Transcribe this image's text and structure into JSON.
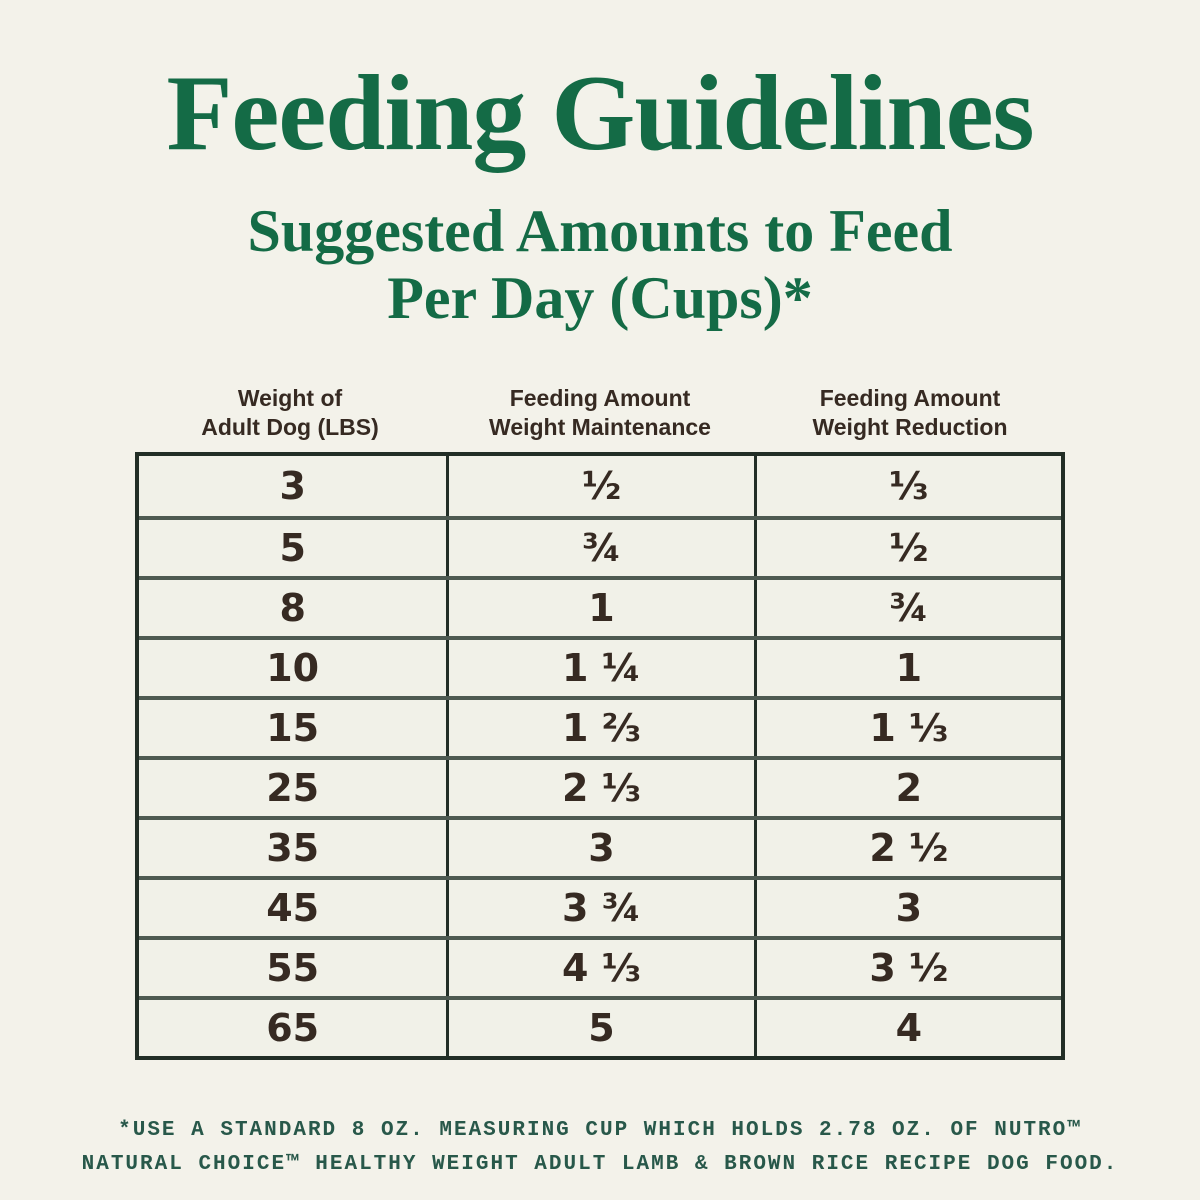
{
  "page": {
    "title": "Feeding Guidelines",
    "subtitle_line1": "Suggested Amounts to Feed",
    "subtitle_line2": "Per Day (Cups)*"
  },
  "table": {
    "headers": [
      {
        "line1": "Weight of",
        "line2": "Adult Dog (LBS)"
      },
      {
        "line1": "Feeding Amount",
        "line2": "Weight Maintenance"
      },
      {
        "line1": "Feeding Amount",
        "line2": "Weight Reduction"
      }
    ],
    "rows": [
      [
        "3",
        "½",
        "⅓"
      ],
      [
        "5",
        "¾",
        "½"
      ],
      [
        "8",
        "1",
        "¾"
      ],
      [
        "10",
        "1 ¼",
        "1"
      ],
      [
        "15",
        "1 ⅔",
        "1 ⅓"
      ],
      [
        "25",
        "2 ⅓",
        "2"
      ],
      [
        "35",
        "3",
        "2 ½"
      ],
      [
        "45",
        "3 ¾",
        "3"
      ],
      [
        "55",
        "4 ⅓",
        "3 ½"
      ],
      [
        "65",
        "5",
        "4"
      ]
    ]
  },
  "footnote": {
    "line1": "*USE A STANDARD 8 OZ. MEASURING CUP WHICH HOLDS 2.78 OZ. OF NUTRO™",
    "line2": "NATURAL CHOICE™ HEALTHY WEIGHT ADULT LAMB & BROWN RICE RECIPE DOG FOOD."
  },
  "colors": {
    "background": "#f3f2ea",
    "heading_green": "#146b46",
    "table_text_brown": "#362a22",
    "border_dark_green": "#222e26",
    "row_separator_green": "#4e5a51",
    "footnote_green": "#28584a"
  }
}
